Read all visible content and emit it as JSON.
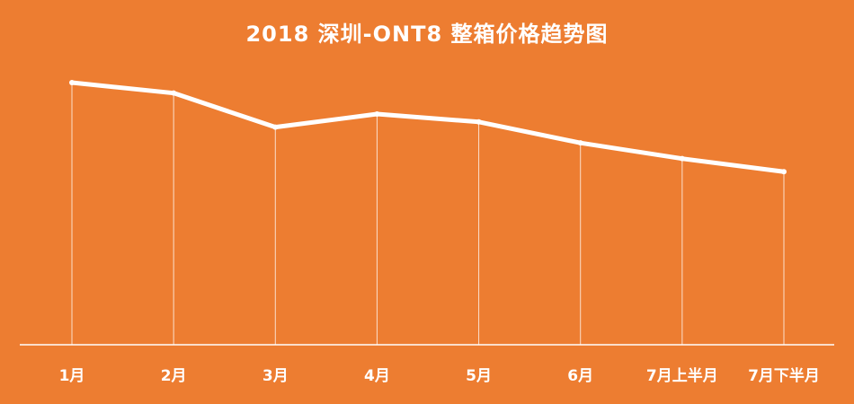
{
  "chart_data": {
    "type": "line",
    "title": "2018 深圳-ONT8 整箱价格趋势图",
    "categories": [
      "1月",
      "2月",
      "3月",
      "4月",
      "5月",
      "6月",
      "7月上半月",
      "7月下半月"
    ],
    "series": [
      {
        "values": [
          100,
          96,
          83,
          88,
          85,
          77,
          71,
          66
        ]
      }
    ],
    "ylim": [
      0,
      110
    ],
    "grid": "vertical drop lines",
    "colors": {
      "background": "#ED7D31",
      "line": "#FFFFFF",
      "axis": "#FFFFFF"
    }
  }
}
